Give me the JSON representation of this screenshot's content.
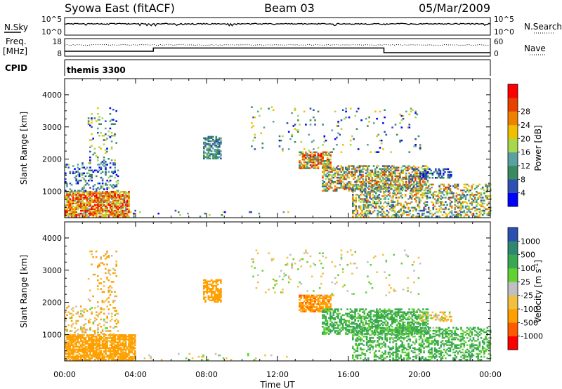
{
  "header": {
    "station": "Syowa East (fitACF)",
    "beam": "Beam 03",
    "date": "05/Mar/2009"
  },
  "colors": {
    "power": [
      "#0000ff",
      "#2e4fb4",
      "#3a8a5f",
      "#5aa0a0",
      "#a8d84a",
      "#f0c000",
      "#f08000",
      "#e84000",
      "#ff0000"
    ],
    "velocity": [
      "#ff0000",
      "#ff5a00",
      "#ff9f00",
      "#f2c040",
      "#c0c0c0",
      "#62d232",
      "#3aa850",
      "#2e8870",
      "#2a50b0"
    ]
  },
  "strip_panels": {
    "noise": {
      "left_label": "N.Sky",
      "right_label": "N.Search",
      "left_ticks": [
        "10^5",
        "10^0"
      ],
      "right_ticks": [
        "10^5",
        "10^0"
      ]
    },
    "freq": {
      "left_label_1": "Freq.",
      "left_label_2": "[MHz]",
      "right_label": "Nave",
      "left_ticks": [
        "18",
        "8"
      ],
      "right_ticks": [
        "60",
        "0"
      ],
      "freq_series": [
        {
          "t_start": 0.0,
          "t_end": 5.0,
          "freq_mhz": 10.5
        },
        {
          "t_start": 5.0,
          "t_end": 18.0,
          "freq_mhz": 12.8
        },
        {
          "t_start": 18.0,
          "t_end": 24.0,
          "freq_mhz": 9.5
        }
      ]
    },
    "cpid": {
      "label": "CPID",
      "program": "themis 3300"
    }
  },
  "chart_data": [
    {
      "type": "heatmap",
      "title": "",
      "xlabel": "",
      "ylabel": "Slant Range [km]",
      "xlim": [
        0,
        24
      ],
      "ylim": [
        180,
        4500
      ],
      "colorbar_label": "Power [dB]",
      "colorbar_ticks": [
        "4",
        "8",
        "12",
        "16",
        "20",
        "24",
        "28"
      ],
      "value_range": [
        0,
        30
      ],
      "regions": [
        {
          "t": [
            0.0,
            3.6
          ],
          "r": [
            200,
            1000
          ],
          "v": [
            12,
            30
          ],
          "density": 0.78
        },
        {
          "t": [
            0.0,
            3.0
          ],
          "r": [
            1000,
            1900
          ],
          "v": [
            0,
            16
          ],
          "density": 0.25
        },
        {
          "t": [
            1.3,
            2.9
          ],
          "r": [
            1900,
            3600
          ],
          "v": [
            0,
            20
          ],
          "density": 0.12
        },
        {
          "t": [
            3.5,
            13.0
          ],
          "r": [
            200,
            400
          ],
          "v": [
            0,
            20
          ],
          "density": 0.05
        },
        {
          "t": [
            7.8,
            8.8
          ],
          "r": [
            2000,
            2700
          ],
          "v": [
            4,
            14
          ],
          "density": 0.6
        },
        {
          "t": [
            13.2,
            15.0
          ],
          "r": [
            1700,
            2200
          ],
          "v": [
            8,
            30
          ],
          "density": 0.7
        },
        {
          "t": [
            14.5,
            20.5
          ],
          "r": [
            1000,
            1800
          ],
          "v": [
            4,
            26
          ],
          "density": 0.55
        },
        {
          "t": [
            16.2,
            24.0
          ],
          "r": [
            200,
            1200
          ],
          "v": [
            4,
            24
          ],
          "density": 0.4
        },
        {
          "t": [
            20.0,
            21.8
          ],
          "r": [
            1400,
            1700
          ],
          "v": [
            0,
            10
          ],
          "density": 0.45
        },
        {
          "t": [
            10.5,
            20.0
          ],
          "r": [
            2200,
            3600
          ],
          "v": [
            0,
            20
          ],
          "density": 0.04
        }
      ]
    },
    {
      "type": "heatmap",
      "title": "",
      "xlabel": "Time UT",
      "ylabel": "Slant Range [km]",
      "xlim": [
        0,
        24
      ],
      "ylim": [
        180,
        4500
      ],
      "colorbar_label": "Velocity [m s^-1]",
      "colorbar_ticks": [
        "-1000",
        "-500",
        "-100",
        "-25",
        "25",
        "100",
        "500",
        "1000"
      ],
      "value_range": [
        -1200,
        1200
      ],
      "regions": [
        {
          "t": [
            0.0,
            4.0
          ],
          "r": [
            200,
            1000
          ],
          "v": [
            -400,
            -60
          ],
          "density": 0.8
        },
        {
          "t": [
            0.0,
            3.0
          ],
          "r": [
            1000,
            1900
          ],
          "v": [
            -200,
            50
          ],
          "density": 0.22
        },
        {
          "t": [
            1.3,
            2.9
          ],
          "r": [
            1900,
            3600
          ],
          "v": [
            -300,
            10
          ],
          "density": 0.12
        },
        {
          "t": [
            3.5,
            13.0
          ],
          "r": [
            200,
            400
          ],
          "v": [
            -100,
            60
          ],
          "density": 0.05
        },
        {
          "t": [
            7.8,
            8.8
          ],
          "r": [
            2000,
            2700
          ],
          "v": [
            -500,
            -120
          ],
          "density": 0.6
        },
        {
          "t": [
            13.2,
            15.0
          ],
          "r": [
            1700,
            2200
          ],
          "v": [
            -600,
            -100
          ],
          "density": 0.7
        },
        {
          "t": [
            14.5,
            20.5
          ],
          "r": [
            1000,
            1800
          ],
          "v": [
            30,
            300
          ],
          "density": 0.55
        },
        {
          "t": [
            16.2,
            24.0
          ],
          "r": [
            200,
            1200
          ],
          "v": [
            20,
            260
          ],
          "density": 0.42
        },
        {
          "t": [
            20.0,
            21.8
          ],
          "r": [
            1400,
            1700
          ],
          "v": [
            -200,
            100
          ],
          "density": 0.4
        },
        {
          "t": [
            10.5,
            20.0
          ],
          "r": [
            2200,
            3600
          ],
          "v": [
            -100,
            80
          ],
          "density": 0.04
        }
      ]
    }
  ],
  "axes": {
    "y_ticks": [
      "1000",
      "2000",
      "3000",
      "4000"
    ],
    "x_ticks": [
      "00:00",
      "04:00",
      "08:00",
      "12:00",
      "16:00",
      "20:00",
      "00:00"
    ],
    "x_label": "Time UT",
    "y_label": "Slant Range [km]"
  }
}
